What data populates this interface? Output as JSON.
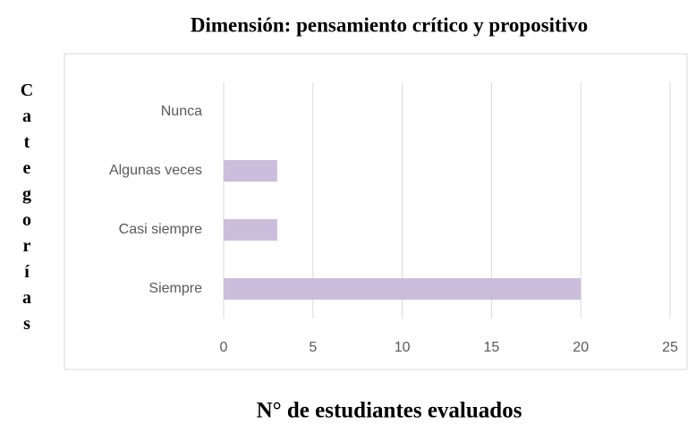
{
  "chart_data": {
    "type": "hbar",
    "title": "Dimensión: pensamiento crítico y propositivo",
    "x_label": "N° de estudiantes evaluados",
    "y_label": "Categorías",
    "categories": [
      "Nunca",
      "Algunas veces",
      "Casi siempre",
      "Siempre"
    ],
    "values": [
      0,
      3,
      3,
      20
    ],
    "color": "#cbbedc",
    "xlim": [
      0,
      25
    ],
    "xticks": [
      0,
      5,
      10,
      15,
      20,
      25
    ],
    "grid": true
  }
}
